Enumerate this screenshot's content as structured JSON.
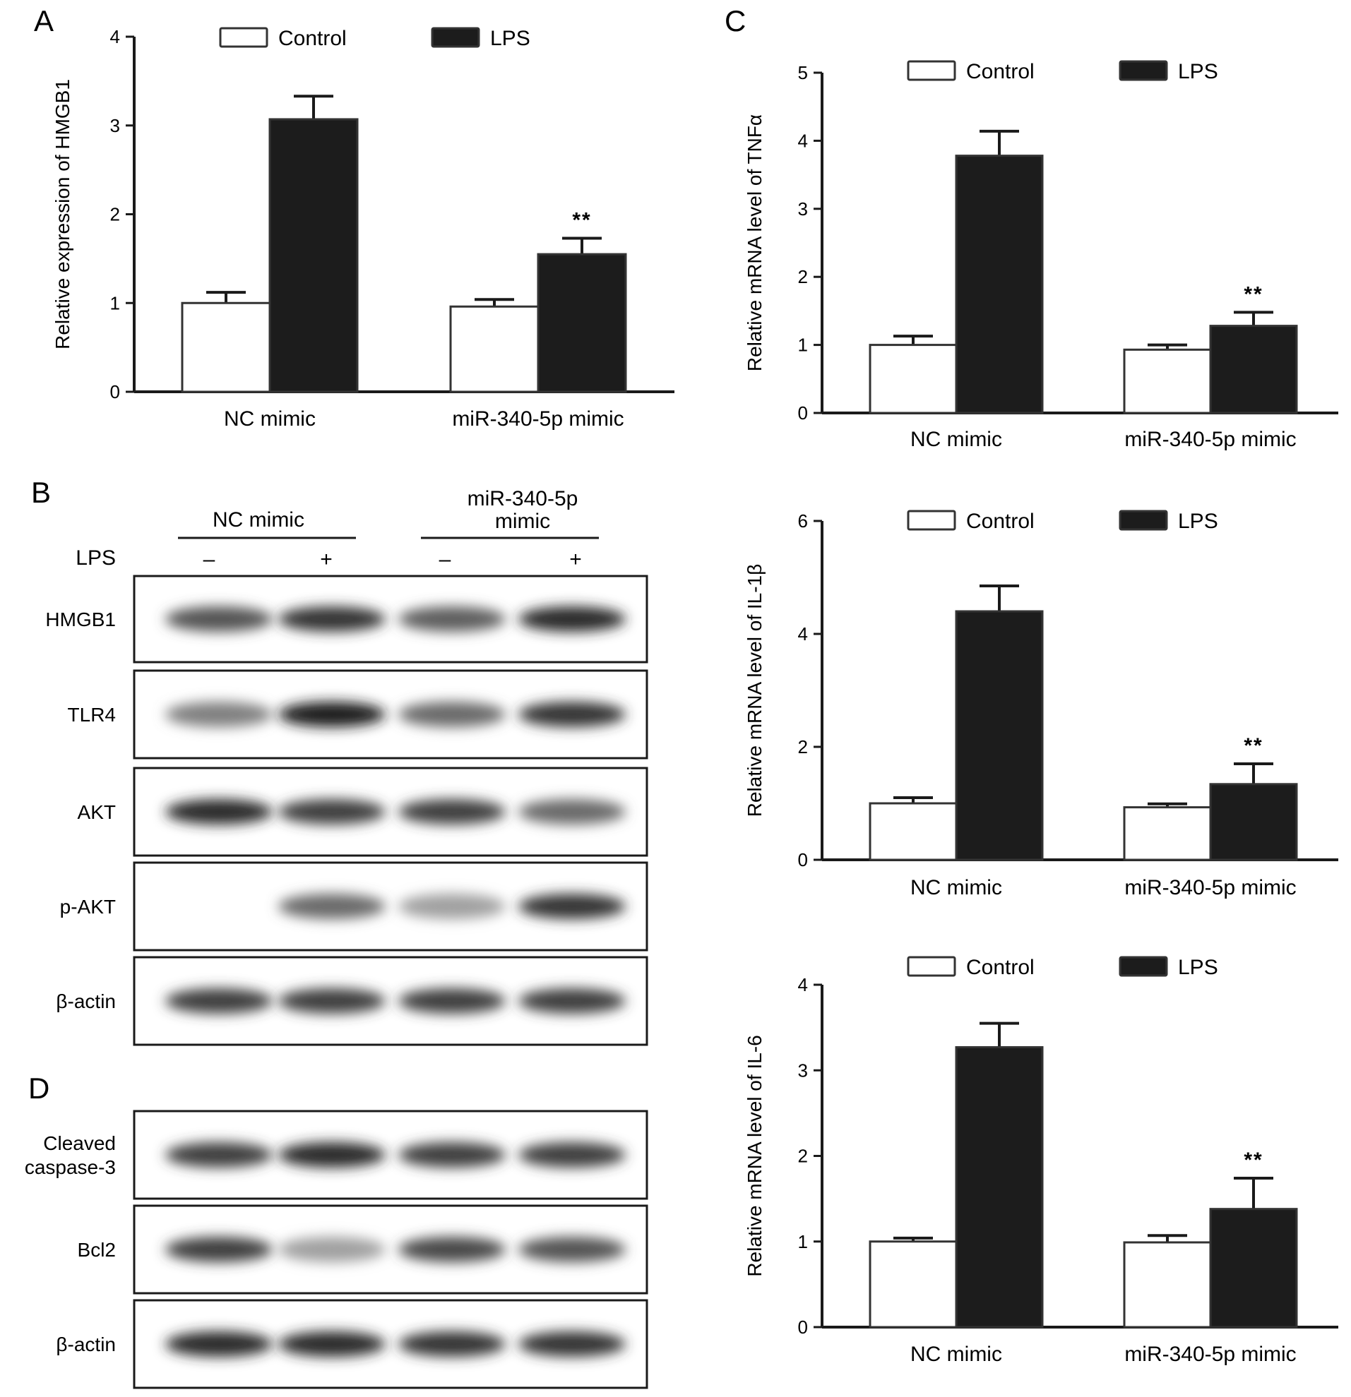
{
  "panels": {
    "A": "A",
    "B": "B",
    "C": "C",
    "D": "D"
  },
  "colors": {
    "control": "#ffffff",
    "lps": "#1c1c1c",
    "axis": "#1a1a1a"
  },
  "chart_data": [
    {
      "id": "A",
      "type": "bar",
      "ylabel": "Relative expression of HMGB1",
      "xlabel": "",
      "ylim": [
        0,
        4
      ],
      "yticks": [
        "0",
        "1",
        "2",
        "3",
        "4"
      ],
      "categories": [
        "NC mimic",
        "miR-340-5p mimic"
      ],
      "legend_placement": "top",
      "grid": false,
      "series": [
        {
          "name": "Control",
          "values": [
            1.0,
            0.96
          ],
          "errors": [
            0.12,
            0.08
          ]
        },
        {
          "name": "LPS",
          "values": [
            3.07,
            1.55
          ],
          "errors": [
            0.26,
            0.18
          ]
        }
      ],
      "annotations": [
        {
          "category": "miR-340-5p mimic",
          "series": "LPS",
          "text": "**"
        }
      ]
    },
    {
      "id": "C1",
      "type": "bar",
      "ylabel": "Relative mRNA level of TNFα",
      "xlabel": "",
      "ylim": [
        0,
        5
      ],
      "yticks": [
        "0",
        "1",
        "2",
        "3",
        "4",
        "5"
      ],
      "categories": [
        "NC mimic",
        "miR-340-5p mimic"
      ],
      "legend_placement": "top",
      "grid": false,
      "series": [
        {
          "name": "Control",
          "values": [
            1.0,
            0.93
          ],
          "errors": [
            0.13,
            0.07
          ]
        },
        {
          "name": "LPS",
          "values": [
            3.78,
            1.28
          ],
          "errors": [
            0.36,
            0.2
          ]
        }
      ],
      "annotations": [
        {
          "category": "miR-340-5p mimic",
          "series": "LPS",
          "text": "**"
        }
      ]
    },
    {
      "id": "C2",
      "type": "bar",
      "ylabel": "Relative mRNA level of IL-1β",
      "xlabel": "",
      "ylim": [
        0,
        6
      ],
      "yticks": [
        "0",
        "2",
        "4",
        "6"
      ],
      "categories": [
        "NC mimic",
        "miR-340-5p mimic"
      ],
      "legend_placement": "top",
      "grid": false,
      "series": [
        {
          "name": "Control",
          "values": [
            1.0,
            0.93
          ],
          "errors": [
            0.1,
            0.06
          ]
        },
        {
          "name": "LPS",
          "values": [
            4.4,
            1.34
          ],
          "errors": [
            0.45,
            0.36
          ]
        }
      ],
      "annotations": [
        {
          "category": "miR-340-5p mimic",
          "series": "LPS",
          "text": "**"
        }
      ]
    },
    {
      "id": "C3",
      "type": "bar",
      "ylabel": "Relative mRNA level of IL-6",
      "xlabel": "",
      "ylim": [
        0,
        4
      ],
      "yticks": [
        "0",
        "1",
        "2",
        "3",
        "4"
      ],
      "categories": [
        "NC mimic",
        "miR-340-5p mimic"
      ],
      "legend_placement": "top",
      "grid": false,
      "series": [
        {
          "name": "Control",
          "values": [
            1.0,
            0.99
          ],
          "errors": [
            0.04,
            0.08
          ]
        },
        {
          "name": "LPS",
          "values": [
            3.27,
            1.38
          ],
          "errors": [
            0.28,
            0.36
          ]
        }
      ],
      "annotations": [
        {
          "category": "miR-340-5p mimic",
          "series": "LPS",
          "text": "**"
        }
      ]
    }
  ],
  "blot_B": {
    "group_labels": [
      "NC mimic",
      "miR-340-5p\nmimic"
    ],
    "lps_label": "LPS",
    "lps_signs": [
      "–",
      "+",
      "–",
      "+"
    ],
    "rows": [
      {
        "label": "HMGB1",
        "intensity": [
          0.7,
          0.85,
          0.65,
          0.9
        ]
      },
      {
        "label": "TLR4",
        "intensity": [
          0.5,
          0.95,
          0.6,
          0.85
        ]
      },
      {
        "label": "AKT",
        "intensity": [
          0.9,
          0.8,
          0.8,
          0.6
        ]
      },
      {
        "label": "p-AKT",
        "intensity": [
          0.02,
          0.6,
          0.35,
          0.85
        ]
      },
      {
        "label": "β-actin",
        "intensity": [
          0.8,
          0.8,
          0.8,
          0.8
        ]
      }
    ]
  },
  "blot_D": {
    "rows": [
      {
        "label": "Cleaved\ncaspase-3",
        "intensity": [
          0.8,
          0.9,
          0.8,
          0.8
        ]
      },
      {
        "label": "Bcl2",
        "intensity": [
          0.8,
          0.35,
          0.75,
          0.7
        ]
      },
      {
        "label": "β-actin",
        "intensity": [
          0.9,
          0.9,
          0.85,
          0.85
        ]
      }
    ]
  }
}
